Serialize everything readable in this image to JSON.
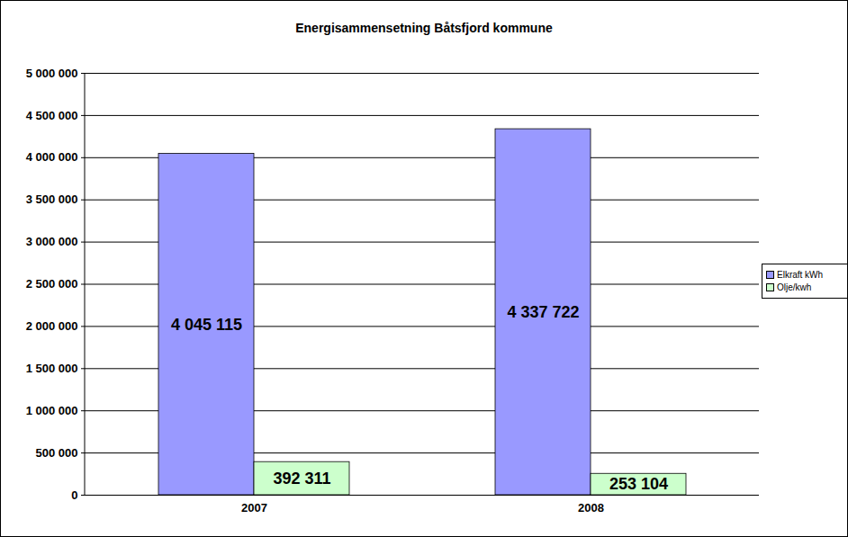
{
  "chart_data": {
    "type": "bar",
    "title": "Energisammensetning Båtsfjord kommune",
    "categories": [
      "2007",
      "2008"
    ],
    "series": [
      {
        "name": "Elkraft kWh",
        "color": "#9999ff",
        "values": [
          4045115,
          4337722
        ],
        "value_labels": [
          "4 045 115",
          "4 337 722"
        ]
      },
      {
        "name": "Olje/kwh",
        "color": "#ccffcc",
        "values": [
          392311,
          253104
        ],
        "value_labels": [
          "392 311",
          "253 104"
        ]
      }
    ],
    "ylim": [
      0,
      5000000
    ],
    "yticks": [
      0,
      {
        "value": 500000,
        "label": "500 000"
      },
      {
        "value": 1000000,
        "label": "1 000 000"
      },
      {
        "value": 1500000,
        "label": "1 500 000"
      },
      {
        "value": 2000000,
        "label": "2 000 000"
      },
      {
        "value": 2500000,
        "label": "2 500 000"
      },
      {
        "value": 3000000,
        "label": "3 000 000"
      },
      {
        "value": 3500000,
        "label": "3 500 000"
      },
      {
        "value": 4000000,
        "label": "4 000 000"
      },
      {
        "value": 4500000,
        "label": "4 500 000"
      },
      {
        "value": 5000000,
        "label": "5 000 000"
      }
    ],
    "grid": true,
    "legend": "right",
    "data_labels": true
  }
}
